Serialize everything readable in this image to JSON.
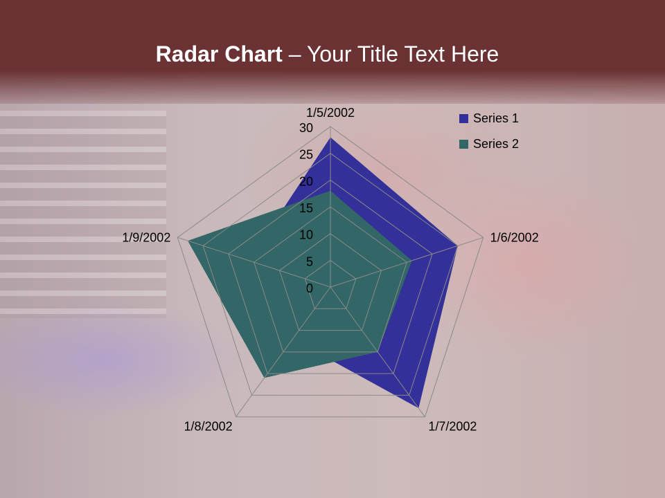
{
  "slide": {
    "title_bold": "Radar Chart",
    "title_rest": " – Your Title Text Here",
    "header_color": "#6b3234"
  },
  "chart_data": {
    "type": "radar",
    "categories": [
      "1/5/2002",
      "1/6/2002",
      "1/7/2002",
      "1/8/2002",
      "1/9/2002"
    ],
    "series": [
      {
        "name": "Series 1",
        "values": [
          28,
          25,
          28,
          12,
          16
        ],
        "color": "#34309a"
      },
      {
        "name": "Series 2",
        "values": [
          18,
          16,
          15,
          21,
          28
        ],
        "color": "#336666"
      }
    ],
    "rlim": [
      0,
      30
    ],
    "ticks": [
      "0",
      "5",
      "10",
      "15",
      "20",
      "25",
      "30"
    ],
    "grid": true,
    "legend": "top-right"
  }
}
